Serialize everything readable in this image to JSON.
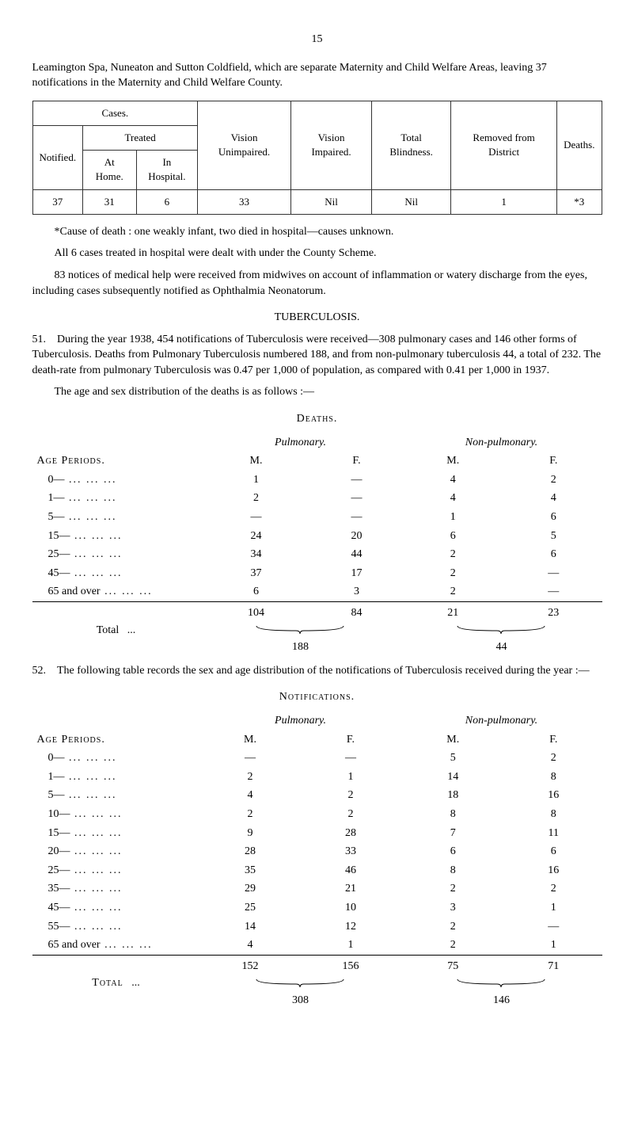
{
  "page_number": "15",
  "intro_para": "Leamington Spa, Nuneaton and Sutton Coldfield, which are separate Maternity and Child Welfare Areas, leaving 37 notifications in the Maternity and Child Welfare County.",
  "boxed_table": {
    "headers": {
      "cases": "Cases.",
      "treated": "Treated",
      "notified": "Notified.",
      "at_home": "At Home.",
      "in_hospital": "In Hospital.",
      "vision_unimpaired": "Vision Unimpaired.",
      "vision_impaired": "Vision Impaired.",
      "total_blindness": "Total Blindness.",
      "removed": "Removed from District",
      "deaths": "Deaths."
    },
    "row": {
      "notified": "37",
      "at_home": "31",
      "in_hospital": "6",
      "vision_unimpaired": "33",
      "vision_impaired": "Nil",
      "total_blindness": "Nil",
      "removed": "1",
      "deaths": "*3"
    }
  },
  "footnote_cause": "*Cause of death : one weakly infant, two died in hospital—causes unknown.",
  "para_all6": "All 6 cases treated in hospital were dealt with under the County Scheme.",
  "para_83": "83 notices of medical help were received from midwives on account of inflammation or watery discharge from the eyes, including cases subsequently notified as Ophthalmia Neonatorum.",
  "tuberculosis_heading": "TUBERCULOSIS.",
  "para_51_label": "51.",
  "para_51": "During the year 1938, 454 notifications of Tuberculosis were received—308 pulmonary cases and 146 other forms of Tuberculosis. Deaths from Pulmonary Tuberculosis numbered 188, and from non-pulmonary tuberculosis 44, a total of 232. The death-rate from pulmonary Tuberculosis was 0.47 per 1,000 of population, as compared with 0.41 per 1,000 in 1937.",
  "para_age_sex": "The age and sex distribution of the deaths is as follows :—",
  "deaths_heading": "Deaths.",
  "pulmonary_label": "Pulmonary.",
  "nonpulmonary_label": "Non-pulmonary.",
  "age_periods_label": "Age Periods.",
  "m_label": "M.",
  "f_label": "F.",
  "deaths_rows": [
    {
      "age": "0—",
      "pm": "1",
      "pf": "—",
      "nm": "4",
      "nf": "2"
    },
    {
      "age": "1—",
      "pm": "2",
      "pf": "—",
      "nm": "4",
      "nf": "4"
    },
    {
      "age": "5—",
      "pm": "—",
      "pf": "—",
      "nm": "1",
      "nf": "6"
    },
    {
      "age": "15—",
      "pm": "24",
      "pf": "20",
      "nm": "6",
      "nf": "5"
    },
    {
      "age": "25—",
      "pm": "34",
      "pf": "44",
      "nm": "2",
      "nf": "6"
    },
    {
      "age": "45—",
      "pm": "37",
      "pf": "17",
      "nm": "2",
      "nf": "—"
    },
    {
      "age": "65 and over",
      "pm": "6",
      "pf": "3",
      "nm": "2",
      "nf": "—"
    }
  ],
  "deaths_totals": {
    "pm": "104",
    "pf": "84",
    "nm": "21",
    "nf": "23"
  },
  "deaths_total_label": "Total",
  "deaths_grand": {
    "p": "188",
    "n": "44"
  },
  "para_52_label": "52.",
  "para_52": "The following table records the sex and age distribution of the notifications of Tuberculosis received during the year :—",
  "notifications_heading": "Notifications.",
  "notif_rows": [
    {
      "age": "0—",
      "pm": "—",
      "pf": "—",
      "nm": "5",
      "nf": "2"
    },
    {
      "age": "1—",
      "pm": "2",
      "pf": "1",
      "nm": "14",
      "nf": "8"
    },
    {
      "age": "5—",
      "pm": "4",
      "pf": "2",
      "nm": "18",
      "nf": "16"
    },
    {
      "age": "10—",
      "pm": "2",
      "pf": "2",
      "nm": "8",
      "nf": "8"
    },
    {
      "age": "15—",
      "pm": "9",
      "pf": "28",
      "nm": "7",
      "nf": "11"
    },
    {
      "age": "20—",
      "pm": "28",
      "pf": "33",
      "nm": "6",
      "nf": "6"
    },
    {
      "age": "25—",
      "pm": "35",
      "pf": "46",
      "nm": "8",
      "nf": "16"
    },
    {
      "age": "35—",
      "pm": "29",
      "pf": "21",
      "nm": "2",
      "nf": "2"
    },
    {
      "age": "45—",
      "pm": "25",
      "pf": "10",
      "nm": "3",
      "nf": "1"
    },
    {
      "age": "55—",
      "pm": "14",
      "pf": "12",
      "nm": "2",
      "nf": "—"
    },
    {
      "age": "65 and over",
      "pm": "4",
      "pf": "1",
      "nm": "2",
      "nf": "1"
    }
  ],
  "notif_totals": {
    "pm": "152",
    "pf": "156",
    "nm": "75",
    "nf": "71"
  },
  "notif_total_label": "Total",
  "notif_grand": {
    "p": "308",
    "n": "146"
  }
}
